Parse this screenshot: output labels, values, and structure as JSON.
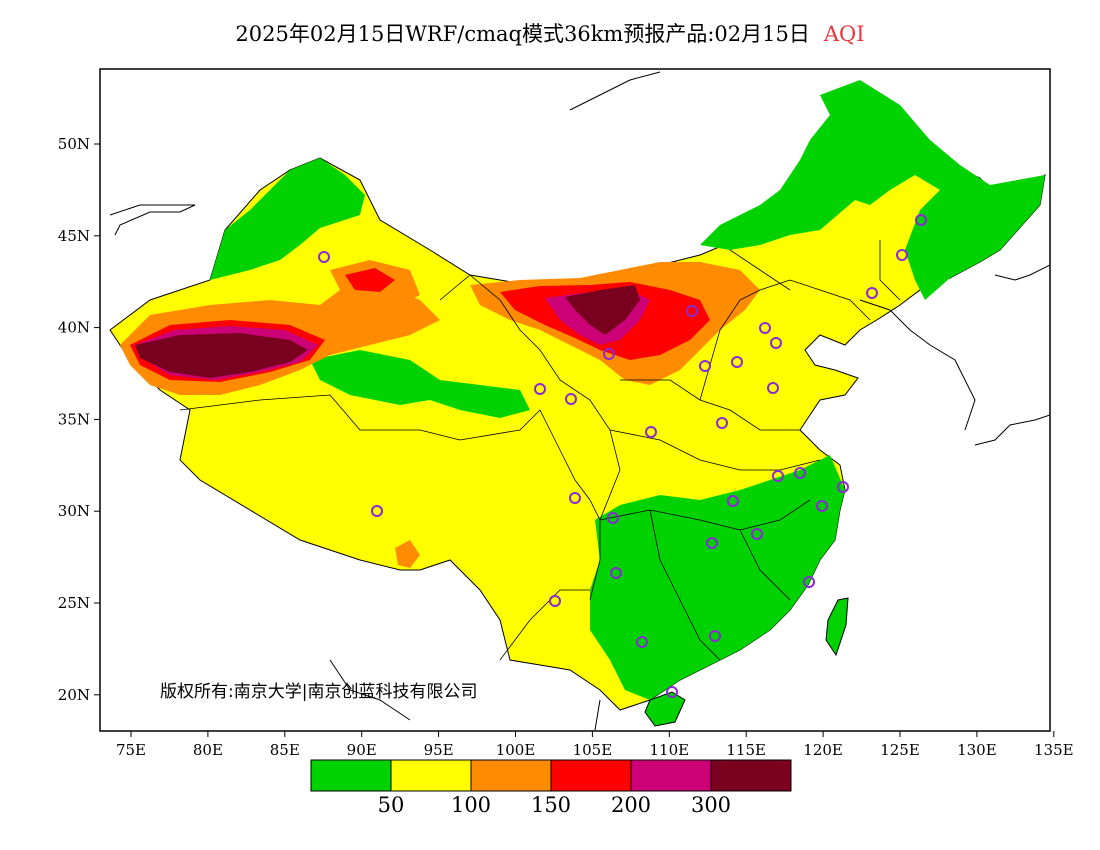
{
  "title": {
    "main": "2025年02月15日WRF/cmaq模式36km预报产品:02月15日",
    "highlight": "AQI"
  },
  "colors": {
    "highlight": "#e8383d",
    "frame": "#000000"
  },
  "axes": {
    "lon_labels": [
      "75E",
      "80E",
      "85E",
      "90E",
      "95E",
      "100E",
      "105E",
      "110E",
      "115E",
      "120E",
      "125E",
      "130E",
      "135E"
    ],
    "lat_labels": [
      "50N",
      "45N",
      "40N",
      "35N",
      "30N",
      "25N",
      "20N"
    ]
  },
  "legend": {
    "colors": [
      "#00d200",
      "#ffff00",
      "#ff8c00",
      "#ff0000",
      "#cc0077",
      "#7a0020"
    ],
    "labels": [
      "50",
      "100",
      "150",
      "200",
      "300"
    ]
  },
  "copyright": "版权所有:南京大学|南京创蓝科技有限公司"
}
